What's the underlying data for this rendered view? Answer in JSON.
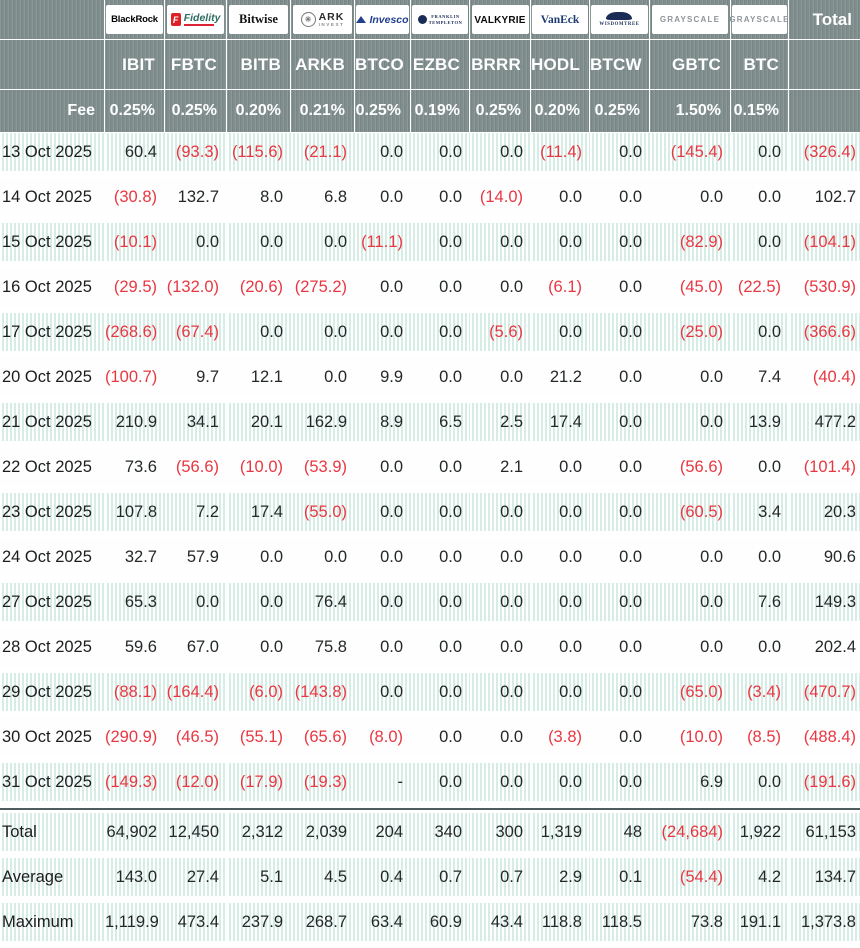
{
  "header": {
    "fee_label": "Fee",
    "total_label": "Total",
    "logos": {
      "blackrock": "BlackRock",
      "fidelity_f": "F",
      "fidelity": "Fidelity",
      "bitwise": "Bitwise",
      "ark_line1": "ARK",
      "ark_line2": "INVEST",
      "invesco": "Invesco",
      "franklin_line1": "FRANKLIN",
      "franklin_line2": "TEMPLETON",
      "valkyrie": "VALKYRIE",
      "vaneck": "VanEck",
      "wisdomtree": "WISDOMTREE",
      "grayscale": "GRAYSCALE"
    },
    "columns": [
      {
        "provider": "BlackRock",
        "ticker": "IBIT",
        "fee": "0.25%"
      },
      {
        "provider": "Fidelity",
        "ticker": "FBTC",
        "fee": "0.25%"
      },
      {
        "provider": "Bitwise",
        "ticker": "BITB",
        "fee": "0.20%"
      },
      {
        "provider": "ARK Invest",
        "ticker": "ARKB",
        "fee": "0.21%"
      },
      {
        "provider": "Invesco",
        "ticker": "BTCO",
        "fee": "0.25%"
      },
      {
        "provider": "Franklin Templeton",
        "ticker": "EZBC",
        "fee": "0.19%"
      },
      {
        "provider": "Valkyrie",
        "ticker": "BRRR",
        "fee": "0.25%"
      },
      {
        "provider": "VanEck",
        "ticker": "HODL",
        "fee": "0.20%"
      },
      {
        "provider": "WisdomTree",
        "ticker": "BTCW",
        "fee": "0.25%"
      },
      {
        "provider": "Grayscale",
        "ticker": "GBTC",
        "fee": "1.50%"
      },
      {
        "provider": "Grayscale",
        "ticker": "BTC",
        "fee": "0.15%"
      }
    ]
  },
  "rows": [
    {
      "date": "13 Oct 2025",
      "values": [
        "60.4",
        "(93.3)",
        "(115.6)",
        "(21.1)",
        "0.0",
        "0.0",
        "0.0",
        "(11.4)",
        "0.0",
        "(145.4)",
        "0.0",
        "(326.4)"
      ]
    },
    {
      "date": "14 Oct 2025",
      "values": [
        "(30.8)",
        "132.7",
        "8.0",
        "6.8",
        "0.0",
        "0.0",
        "(14.0)",
        "0.0",
        "0.0",
        "0.0",
        "0.0",
        "102.7"
      ]
    },
    {
      "date": "15 Oct 2025",
      "values": [
        "(10.1)",
        "0.0",
        "0.0",
        "0.0",
        "(11.1)",
        "0.0",
        "0.0",
        "0.0",
        "0.0",
        "(82.9)",
        "0.0",
        "(104.1)"
      ]
    },
    {
      "date": "16 Oct 2025",
      "values": [
        "(29.5)",
        "(132.0)",
        "(20.6)",
        "(275.2)",
        "0.0",
        "0.0",
        "0.0",
        "(6.1)",
        "0.0",
        "(45.0)",
        "(22.5)",
        "(530.9)"
      ]
    },
    {
      "date": "17 Oct 2025",
      "values": [
        "(268.6)",
        "(67.4)",
        "0.0",
        "0.0",
        "0.0",
        "0.0",
        "(5.6)",
        "0.0",
        "0.0",
        "(25.0)",
        "0.0",
        "(366.6)"
      ]
    },
    {
      "date": "20 Oct 2025",
      "values": [
        "(100.7)",
        "9.7",
        "12.1",
        "0.0",
        "9.9",
        "0.0",
        "0.0",
        "21.2",
        "0.0",
        "0.0",
        "7.4",
        "(40.4)"
      ]
    },
    {
      "date": "21 Oct 2025",
      "values": [
        "210.9",
        "34.1",
        "20.1",
        "162.9",
        "8.9",
        "6.5",
        "2.5",
        "17.4",
        "0.0",
        "0.0",
        "13.9",
        "477.2"
      ]
    },
    {
      "date": "22 Oct 2025",
      "values": [
        "73.6",
        "(56.6)",
        "(10.0)",
        "(53.9)",
        "0.0",
        "0.0",
        "2.1",
        "0.0",
        "0.0",
        "(56.6)",
        "0.0",
        "(101.4)"
      ]
    },
    {
      "date": "23 Oct 2025",
      "values": [
        "107.8",
        "7.2",
        "17.4",
        "(55.0)",
        "0.0",
        "0.0",
        "0.0",
        "0.0",
        "0.0",
        "(60.5)",
        "3.4",
        "20.3"
      ]
    },
    {
      "date": "24 Oct 2025",
      "values": [
        "32.7",
        "57.9",
        "0.0",
        "0.0",
        "0.0",
        "0.0",
        "0.0",
        "0.0",
        "0.0",
        "0.0",
        "0.0",
        "90.6"
      ]
    },
    {
      "date": "27 Oct 2025",
      "values": [
        "65.3",
        "0.0",
        "0.0",
        "76.4",
        "0.0",
        "0.0",
        "0.0",
        "0.0",
        "0.0",
        "0.0",
        "7.6",
        "149.3"
      ]
    },
    {
      "date": "28 Oct 2025",
      "values": [
        "59.6",
        "67.0",
        "0.0",
        "75.8",
        "0.0",
        "0.0",
        "0.0",
        "0.0",
        "0.0",
        "0.0",
        "0.0",
        "202.4"
      ]
    },
    {
      "date": "29 Oct 2025",
      "values": [
        "(88.1)",
        "(164.4)",
        "(6.0)",
        "(143.8)",
        "0.0",
        "0.0",
        "0.0",
        "0.0",
        "0.0",
        "(65.0)",
        "(3.4)",
        "(470.7)"
      ]
    },
    {
      "date": "30 Oct 2025",
      "values": [
        "(290.9)",
        "(46.5)",
        "(55.1)",
        "(65.6)",
        "(8.0)",
        "0.0",
        "0.0",
        "(3.8)",
        "0.0",
        "(10.0)",
        "(8.5)",
        "(488.4)"
      ]
    },
    {
      "date": "31 Oct 2025",
      "values": [
        "(149.3)",
        "(12.0)",
        "(17.9)",
        "(19.3)",
        "-",
        "0.0",
        "0.0",
        "0.0",
        "0.0",
        "6.9",
        "0.0",
        "(191.6)"
      ]
    }
  ],
  "summary": [
    {
      "label": "Total",
      "values": [
        "64,902",
        "12,450",
        "2,312",
        "2,039",
        "204",
        "340",
        "300",
        "1,319",
        "48",
        "(24,684)",
        "1,922",
        "61,153"
      ]
    },
    {
      "label": "Average",
      "values": [
        "143.0",
        "27.4",
        "5.1",
        "4.5",
        "0.4",
        "0.7",
        "0.7",
        "2.9",
        "0.1",
        "(54.4)",
        "4.2",
        "134.7"
      ]
    },
    {
      "label": "Maximum",
      "values": [
        "1,119.9",
        "473.4",
        "237.9",
        "268.7",
        "63.4",
        "60.9",
        "43.4",
        "118.8",
        "118.5",
        "73.8",
        "191.1",
        "1,373.8"
      ]
    }
  ],
  "colors": {
    "header_bg": "#7f8d8d",
    "stripe": "#d8ece6",
    "negative": "#e93742",
    "text": "#25282a",
    "separator": "#4e5c5d"
  }
}
